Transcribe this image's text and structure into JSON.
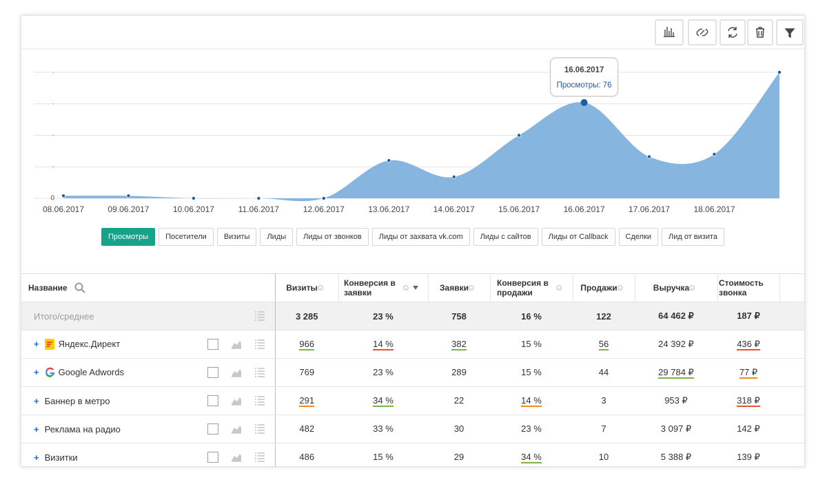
{
  "chart_data": {
    "type": "area",
    "x": [
      "08.06.2017",
      "09.06.2017",
      "10.06.2017",
      "11.06.2017",
      "12.06.2017",
      "13.06.2017",
      "14.06.2017",
      "15.06.2017",
      "16.06.2017",
      "17.06.2017",
      "18.06.2017",
      null
    ],
    "series": [
      {
        "name": "Просмотры",
        "color": "#86b6e0",
        "point_color": "#1b5ea8",
        "values": [
          2,
          2,
          0,
          0,
          0,
          30,
          17,
          50,
          76,
          33,
          35,
          100
        ]
      }
    ],
    "ylim": [
      0,
      100
    ],
    "yticks": [
      0,
      {
        "value": 25,
        "label": "·"
      },
      {
        "value": 50,
        "label": "·"
      },
      {
        "value": 75,
        "label": "·"
      },
      {
        "value": 100,
        "label": "·"
      }
    ],
    "grid": true,
    "tooltip": {
      "x": "16.06.2017",
      "text": "Просмотры: 76"
    }
  },
  "tabs": {
    "items": [
      "Просмотры",
      "Посетители",
      "Визиты",
      "Лиды",
      "Лиды от звонков",
      "Лиды от захвата vk.com",
      "Лиды с сайтов",
      "Лиды от Callback",
      "Сделки",
      "Лид от визита"
    ],
    "active": 0
  },
  "table": {
    "columns": [
      {
        "label": "Название",
        "search": true
      },
      {
        "label": "Визиты",
        "help": true
      },
      {
        "label": "Конверсия в заявки",
        "help": true,
        "sort": "desc"
      },
      {
        "label": "Заявки",
        "help": true
      },
      {
        "label": "Конверсия в продажи",
        "help": true
      },
      {
        "label": "Продажи",
        "help": true
      },
      {
        "label": "Выручка",
        "help": true
      },
      {
        "label": "Стоимость звонка"
      }
    ],
    "total": {
      "name": "Итого/среднее",
      "cells": [
        "3 285",
        "23 %",
        "758",
        "16 %",
        "122",
        "64 462 ₽",
        "187 ₽"
      ]
    },
    "rows": [
      {
        "name": "Яндекс.Директ",
        "icon": "yandex",
        "cells": [
          "966",
          "14 %",
          "382",
          "15 %",
          "56",
          "24 392 ₽",
          "436 ₽"
        ],
        "underline": [
          "#7cb342",
          "#e8522f",
          "#7cb342",
          null,
          "#7cb342",
          null,
          "#e8522f"
        ]
      },
      {
        "name": "Google Adwords",
        "icon": "google",
        "cells": [
          "769",
          "23 %",
          "289",
          "15 %",
          "44",
          "29 784 ₽",
          "77 ₽"
        ],
        "underline": [
          null,
          null,
          null,
          null,
          null,
          "#7cb342",
          "#f0891f"
        ]
      },
      {
        "name": "Баннер в метро",
        "cells": [
          "291",
          "34 %",
          "22",
          "14 %",
          "3",
          "953 ₽",
          "318 ₽"
        ],
        "underline": [
          "#f0891f",
          "#7cb342",
          null,
          "#f0891f",
          null,
          null,
          "#e8522f"
        ]
      },
      {
        "name": "Реклама на радио",
        "cells": [
          "482",
          "33 %",
          "30",
          "23 %",
          "7",
          "3 097 ₽",
          "142 ₽"
        ],
        "underline": [
          null,
          null,
          null,
          null,
          null,
          null,
          null
        ]
      },
      {
        "name": "Визитки",
        "cells": [
          "486",
          "15 %",
          "29",
          "34 %",
          "10",
          "5 388 ₽",
          "139 ₽"
        ],
        "underline": [
          null,
          null,
          null,
          "#7cb342",
          null,
          null,
          null
        ]
      }
    ]
  }
}
